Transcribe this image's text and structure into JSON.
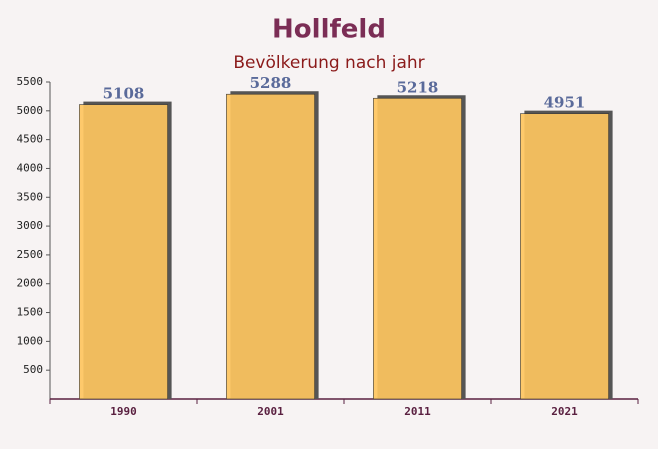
{
  "chart_data": {
    "type": "bar",
    "title": "Hollfeld",
    "subtitle": "Bevölkerung nach jahr",
    "categories": [
      "1990",
      "2001",
      "2011",
      "2021"
    ],
    "values": [
      5108,
      5288,
      5218,
      4951
    ],
    "color": "#fec55f",
    "ylim": [
      0,
      5500
    ],
    "yticks": [
      500,
      1000,
      1500,
      2000,
      2500,
      3000,
      3500,
      4000,
      4500,
      5000,
      5500
    ]
  }
}
